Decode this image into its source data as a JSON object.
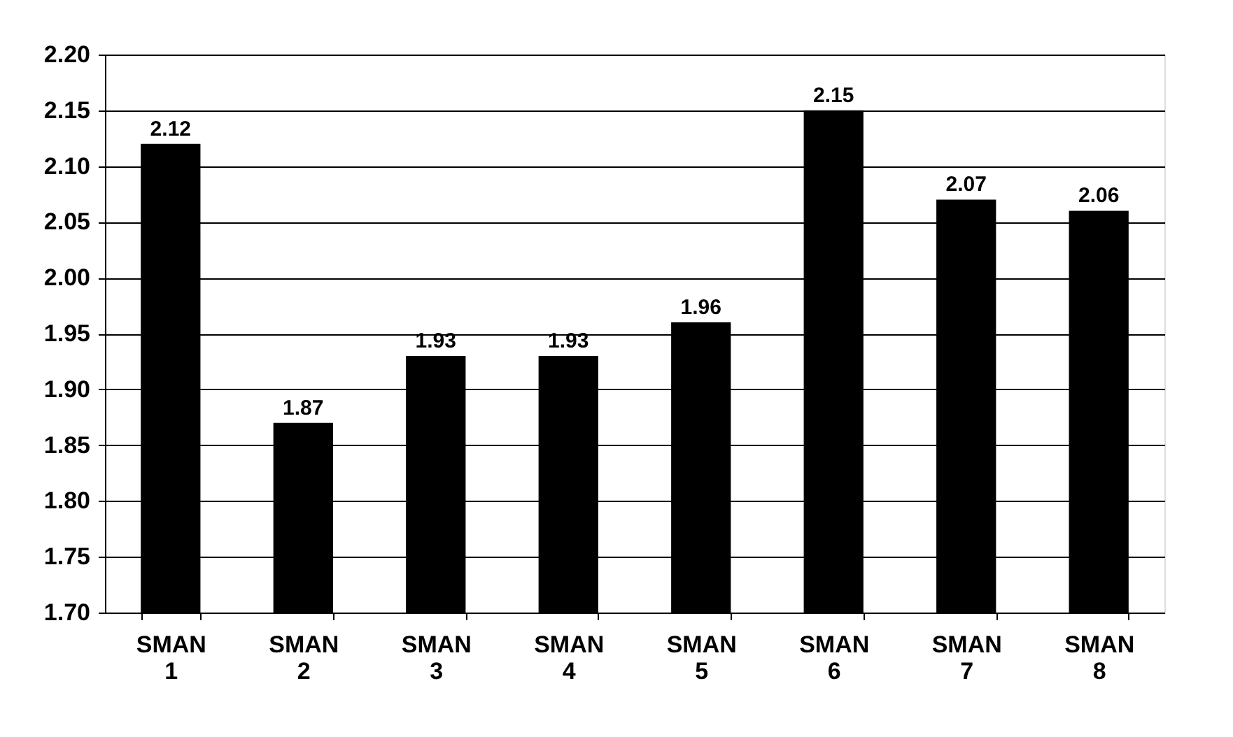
{
  "chart_data": {
    "type": "bar",
    "categories": [
      "SMAN 1",
      "SMAN 2",
      "SMAN 3",
      "SMAN 4",
      "SMAN 5",
      "SMAN 6",
      "SMAN 7",
      "SMAN 8"
    ],
    "values": [
      2.12,
      1.87,
      1.93,
      1.93,
      1.96,
      2.15,
      2.07,
      2.06
    ],
    "color": "#000000",
    "ylim": [
      1.7,
      2.2
    ],
    "yticks": [
      {
        "value": 1.7,
        "label": "1.70"
      },
      {
        "value": 1.75,
        "label": "1.75"
      },
      {
        "value": 1.8,
        "label": "1.80"
      },
      {
        "value": 1.85,
        "label": "1.85"
      },
      {
        "value": 1.9,
        "label": "1.90"
      },
      {
        "value": 1.95,
        "label": "1.95"
      },
      {
        "value": 2.0,
        "label": "2.00"
      },
      {
        "value": 2.05,
        "label": "2.05"
      },
      {
        "value": 2.1,
        "label": "2.10"
      },
      {
        "value": 2.15,
        "label": "2.15"
      },
      {
        "value": 2.2,
        "label": "2.20"
      }
    ],
    "grid": "y",
    "data_labels": true
  }
}
